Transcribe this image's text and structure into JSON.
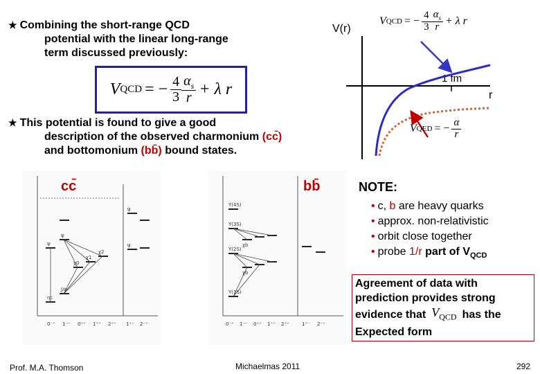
{
  "slide": {
    "bullet1": {
      "line1": "Combining the short-range QCD",
      "line2": "potential with the linear long-range",
      "line3": "term discussed previously:"
    },
    "equation_qcd": {
      "lhs": "V",
      "lhs_sub": "QCD",
      "eq": "= −",
      "coef_num": "4",
      "coef_den": "3",
      "alpha": "α",
      "alpha_sub": "s",
      "r": "r",
      "plus": "+ λ r"
    },
    "bullet2": {
      "line1": "This potential is found to give a good",
      "line2": "description of the observed charmonium",
      "line2_tag": "(cc̄)",
      "line3_a": "and bottomonium",
      "line3_tag": "(bb̄)",
      "line3_b": "bound states."
    },
    "graph": {
      "y_label": "V(r)",
      "x_label": "r",
      "marker_label": "1 fm",
      "qed_eq": {
        "lhs": "V",
        "lhs_sub": "QED",
        "eq": "= −",
        "num": "α",
        "den": "r"
      }
    },
    "spectra": {
      "left_label": "cc̄",
      "right_label": "bb̄"
    },
    "note": {
      "title": "NOTE:",
      "items": [
        {
          "a": "c, ",
          "b": "b",
          "c": " are heavy quarks"
        },
        {
          "a": "approx. non-relativistic"
        },
        {
          "a": "orbit close together"
        },
        {
          "a": "probe ",
          "b": "1/r",
          "c": " part of V",
          "sub": "QCD"
        }
      ]
    },
    "agreement": {
      "line1": "Agreement of data with",
      "line2": "prediction provides strong",
      "line3_a": "evidence that",
      "line3_b": "has the",
      "line4": "Expected form"
    },
    "footer": {
      "author": "Prof. M.A. Thomson",
      "term": "Michaelmas 2011",
      "page": "292"
    }
  },
  "colors": {
    "box_border": "#1f1fa8",
    "accent_red": "#c00000",
    "curve_blue": "#2a2acb",
    "curve_orange": "#d9642b",
    "arrow_blue": "#3434c8"
  }
}
